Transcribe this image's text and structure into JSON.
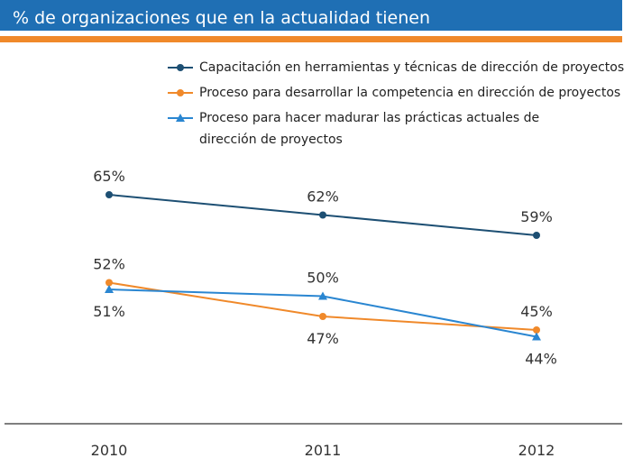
{
  "chart_data": {
    "type": "line",
    "title": "% de organizaciones que en la actualidad tienen",
    "categories": [
      "2010",
      "2011",
      "2012"
    ],
    "series": [
      {
        "name": "Capacitación en herramientas y técnicas de dirección de proyectos",
        "color": "#1d4f73",
        "marker": "circle",
        "values": [
          65,
          62,
          59
        ],
        "value_labels": [
          "65%",
          "62%",
          "59%"
        ]
      },
      {
        "name": "Proceso para desarrollar la competencia en dirección de proyectos",
        "color": "#f0892a",
        "marker": "circle",
        "values": [
          52,
          47,
          45
        ],
        "value_labels": [
          "52%",
          "47%",
          "45%"
        ]
      },
      {
        "name": "Proceso para hacer madurar las prácticas actuales de dirección de proyectos",
        "color": "#2a86d1",
        "marker": "triangle",
        "values": [
          51,
          50,
          44
        ],
        "value_labels": [
          "51%",
          "50%",
          "44%"
        ]
      }
    ]
  }
}
